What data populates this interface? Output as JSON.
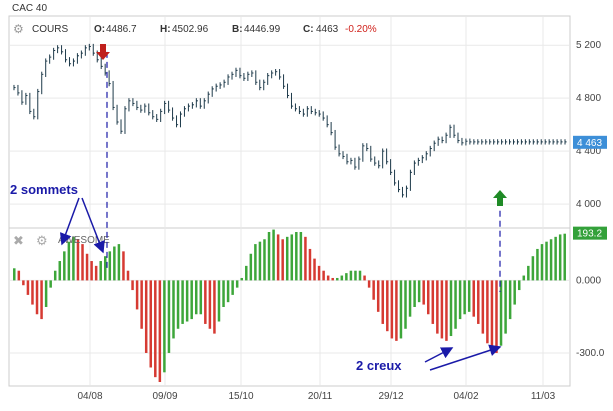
{
  "chart_data": {
    "type": "line",
    "title": "CAC 40",
    "legend": {
      "icon": "gear-icon",
      "label": "COURS"
    },
    "header": [
      {
        "key": "O:",
        "value": "4486.7"
      },
      {
        "key": "H:",
        "value": "4502.96"
      },
      {
        "key": "B:",
        "value": "4446.99"
      },
      {
        "key": "C:",
        "value": "4463"
      },
      {
        "key": "",
        "value": "-0.20%"
      }
    ],
    "x_ticks": [
      "04/08",
      "09/09",
      "15/10",
      "20/11",
      "29/12",
      "04/02",
      "11/03"
    ],
    "price_panel": {
      "y_ticks": [
        "5 200",
        "4 800",
        "4 400",
        "4 000"
      ],
      "y_tick_values": [
        5200,
        4800,
        4400,
        4000
      ],
      "ylim": [
        3850,
        5360
      ],
      "last_price_label": "4 463",
      "last_price": 4463,
      "x": [
        0,
        2,
        4,
        6,
        8,
        10,
        12,
        14,
        16,
        18,
        20,
        22,
        24,
        26,
        28,
        30,
        32,
        34,
        36,
        38,
        40,
        42,
        44,
        46,
        48,
        50,
        52,
        54,
        56,
        58,
        60,
        62,
        64,
        66,
        68,
        70,
        72,
        74,
        76,
        78,
        80,
        82,
        84,
        86,
        88,
        90,
        92,
        94,
        96,
        98,
        100,
        102,
        104,
        106,
        108,
        110,
        112,
        114,
        116,
        118,
        120,
        122,
        124,
        126,
        128,
        130,
        132,
        134,
        136,
        138,
        140,
        142,
        144,
        146,
        148,
        150,
        152,
        154,
        156,
        158,
        160,
        162,
        164,
        166,
        168,
        170,
        172,
        174,
        176,
        178,
        180,
        182,
        184,
        186,
        188,
        190,
        192,
        194,
        196,
        198,
        200,
        202,
        204,
        206,
        208,
        210,
        212,
        214,
        216,
        218,
        220,
        222,
        224,
        226,
        228,
        230,
        232,
        234,
        236,
        238,
        240,
        242,
        244,
        246,
        248,
        250,
        252,
        254,
        256,
        258,
        260,
        262,
        264,
        266,
        268,
        270,
        272,
        274,
        276,
        278
      ],
      "close": [
        4880,
        4840,
        4770,
        4820,
        4700,
        4660,
        4850,
        4980,
        5080,
        5110,
        5160,
        5180,
        5150,
        5090,
        5060,
        5080,
        5120,
        5140,
        5180,
        5190,
        5140,
        5090,
        5040,
        4990,
        4910,
        4730,
        4620,
        4550,
        4720,
        4780,
        4760,
        4730,
        4710,
        4740,
        4690,
        4660,
        4640,
        4700,
        4760,
        4710,
        4650,
        4600,
        4680,
        4720,
        4740,
        4750,
        4780,
        4740,
        4780,
        4830,
        4870,
        4890,
        4900,
        4920,
        4960,
        4980,
        5010,
        4970,
        4950,
        4980,
        4990,
        4920,
        4880,
        4920,
        4970,
        4990,
        5000,
        4960,
        4890,
        4820,
        4740,
        4720,
        4700,
        4680,
        4720,
        4700,
        4690,
        4680,
        4650,
        4600,
        4540,
        4430,
        4380,
        4360,
        4320,
        4330,
        4280,
        4340,
        4440,
        4420,
        4340,
        4310,
        4290,
        4400,
        4320,
        4240,
        4160,
        4110,
        4070,
        4120,
        4240,
        4310,
        4330,
        4350,
        4380,
        4420,
        4460,
        4490,
        4480,
        4520,
        4580,
        4520,
        4480,
        4463,
        4475,
        4470,
        4470,
        4470,
        4470,
        4470,
        4470,
        4470,
        4470,
        4470,
        4470,
        4470,
        4470,
        4470,
        4470,
        4470,
        4470,
        4470,
        4470,
        4470,
        4470,
        4470,
        4470,
        4470,
        4470,
        4470
      ]
    },
    "oscillator_panel": {
      "label": "AWESOME",
      "icons": [
        "close-icon",
        "gear-icon"
      ],
      "y_ticks": [
        "0.000",
        "-300.0"
      ],
      "y_tick_values": [
        0,
        -300
      ],
      "ylim": [
        -420,
        200
      ],
      "last_value_label": "193.2",
      "last_value": 193.2,
      "values": [
        50,
        40,
        -20,
        -60,
        -100,
        -140,
        -160,
        -110,
        -30,
        40,
        80,
        120,
        160,
        180,
        170,
        150,
        110,
        80,
        60,
        80,
        100,
        120,
        140,
        150,
        120,
        40,
        -40,
        -120,
        -200,
        -300,
        -360,
        -400,
        -420,
        -380,
        -300,
        -240,
        -200,
        -180,
        -170,
        -160,
        -140,
        -140,
        -180,
        -200,
        -220,
        -170,
        -110,
        -90,
        -60,
        -30,
        10,
        60,
        110,
        150,
        160,
        170,
        200,
        210,
        190,
        170,
        180,
        190,
        200,
        200,
        180,
        130,
        90,
        60,
        40,
        20,
        10,
        10,
        20,
        30,
        40,
        40,
        40,
        20,
        -30,
        -80,
        -130,
        -180,
        -210,
        -240,
        -250,
        -240,
        -200,
        -150,
        -110,
        -90,
        -100,
        -140,
        -180,
        -220,
        -240,
        -250,
        -230,
        -200,
        -160,
        -140,
        -130,
        -150,
        -180,
        -220,
        -260,
        -290,
        -300,
        -270,
        -220,
        -160,
        -100,
        -40,
        20,
        60,
        100,
        130,
        150,
        160,
        170,
        180,
        190,
        193
      ]
    },
    "annotations": {
      "peaks_label": "2 sommets",
      "troughs_label": "2 creux"
    }
  },
  "colors": {
    "price_line": "#1e3a4a",
    "bar_up": "#3da63a",
    "bar_down": "#d63a32",
    "last_price_badge": "#3d8fd8",
    "last_value_badge": "#33a13a",
    "arrow_down": "#c0201c",
    "arrow_up": "#1f8a26",
    "annotation": "#1a1aa8",
    "grid": "#e9e9e9",
    "negative_change": "#d0201a"
  }
}
